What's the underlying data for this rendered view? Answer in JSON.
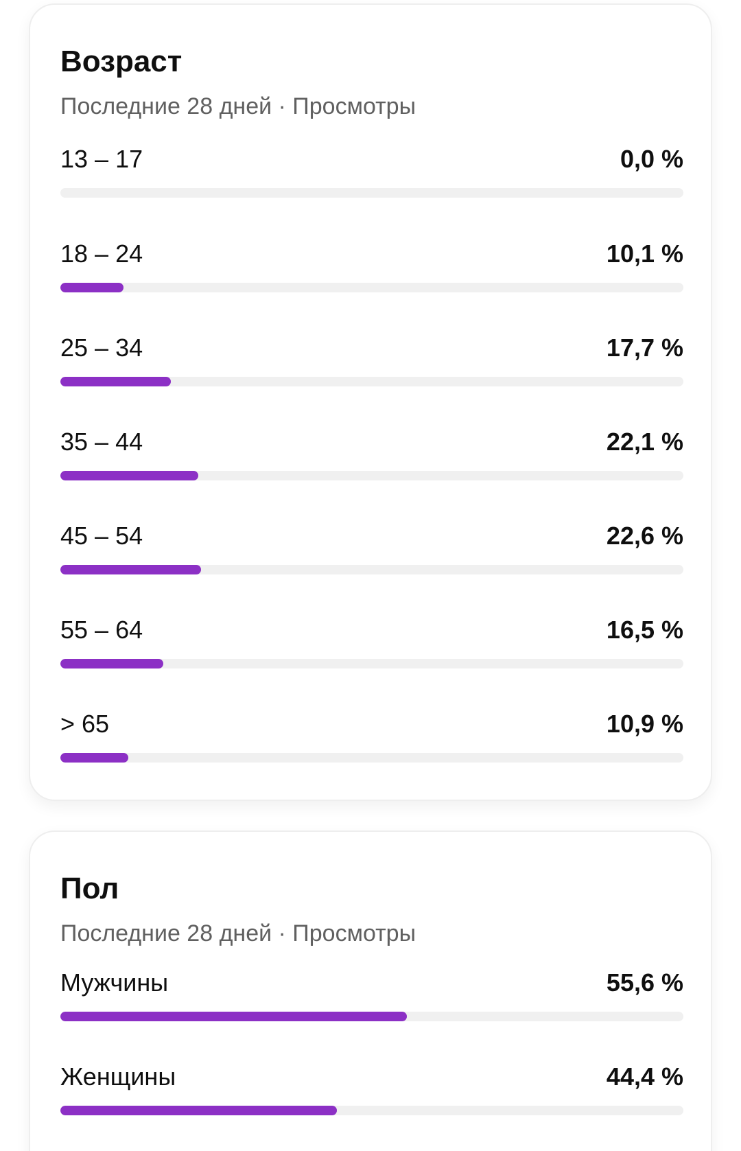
{
  "age_card": {
    "title": "Возраст",
    "subtitle": "Последние 28 дней · Просмотры",
    "rows": [
      {
        "label": "13 – 17",
        "value": "0,0 %",
        "percent": 0.0
      },
      {
        "label": "18 – 24",
        "value": "10,1 %",
        "percent": 10.1
      },
      {
        "label": "25 – 34",
        "value": "17,7 %",
        "percent": 17.7
      },
      {
        "label": "35 – 44",
        "value": "22,1 %",
        "percent": 22.1
      },
      {
        "label": "45 – 54",
        "value": "22,6 %",
        "percent": 22.6
      },
      {
        "label": "55 – 64",
        "value": "16,5 %",
        "percent": 16.5
      },
      {
        "label": "> 65",
        "value": "10,9 %",
        "percent": 10.9
      }
    ]
  },
  "gender_card": {
    "title": "Пол",
    "subtitle": "Последние 28 дней · Просмотры",
    "rows": [
      {
        "label": "Мужчины",
        "value": "55,6 %",
        "percent": 55.6
      },
      {
        "label": "Женщины",
        "value": "44,4 %",
        "percent": 44.4
      }
    ]
  },
  "colors": {
    "bar_fill": "#8c30c5",
    "bar_track": "#f0f0f0"
  }
}
